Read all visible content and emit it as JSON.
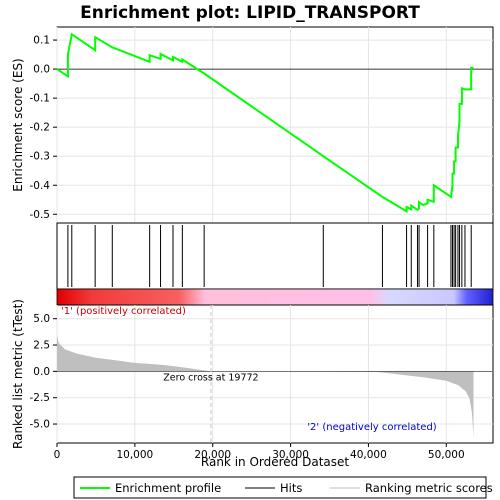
{
  "chart_data": {
    "type": "line",
    "title": "Enrichment plot: LIPID_TRANSPORT",
    "xlabel": "Rank in Ordered Dataset",
    "ylabel_top": "Enrichment score (ES)",
    "ylabel_bottom": "Ranked list metric (tTest)",
    "x_ticks": [
      0,
      10000,
      20000,
      30000,
      40000,
      50000
    ],
    "x_tick_labels": [
      "0",
      "10,000",
      "20,000",
      "30,000",
      "40,000",
      "50,000"
    ],
    "xlim": [
      0,
      56000
    ],
    "es_ylim": [
      -0.53,
      0.145
    ],
    "es_ticks": [
      0.1,
      0.0,
      -0.1,
      -0.2,
      -0.3,
      -0.4,
      -0.5
    ],
    "es_tick_labels": [
      "0.1",
      "0.0",
      "-0.1",
      "-0.2",
      "-0.3",
      "-0.4",
      "-0.5"
    ],
    "metric_ylim": [
      -6.8,
      6.3
    ],
    "metric_ticks": [
      5.0,
      2.5,
      0.0,
      -2.5,
      -5.0
    ],
    "metric_tick_labels": [
      "5.0",
      "2.5",
      "0.0",
      "-2.5",
      "-5.0"
    ],
    "es_curve": {
      "x": [
        0,
        1400,
        1400,
        1900,
        4900,
        4900,
        7100,
        11900,
        11900,
        13300,
        13300,
        14900,
        14900,
        16100,
        16100,
        18900,
        34200,
        41800,
        44900,
        44900,
        45500,
        45500,
        46300,
        46500,
        46500,
        47000,
        47600,
        47600,
        48400,
        48400,
        50600,
        50800,
        50800,
        51000,
        51000,
        51200,
        51200,
        51500,
        51500,
        51700,
        51700,
        52000,
        52000,
        52400,
        52400,
        53200,
        53200,
        53500
      ],
      "y": [
        0.0,
        -0.025,
        0.05,
        0.12,
        0.065,
        0.11,
        0.075,
        0.025,
        0.048,
        0.035,
        0.052,
        0.03,
        0.042,
        0.025,
        0.033,
        -0.015,
        -0.3,
        -0.44,
        -0.49,
        -0.475,
        -0.483,
        -0.47,
        -0.485,
        -0.48,
        -0.458,
        -0.468,
        -0.462,
        -0.45,
        -0.457,
        -0.4,
        -0.44,
        -0.4,
        -0.36,
        -0.36,
        -0.318,
        -0.318,
        -0.27,
        -0.27,
        -0.23,
        -0.18,
        -0.12,
        -0.12,
        -0.066,
        -0.07,
        -0.07,
        -0.07,
        0.005,
        0.005
      ]
    },
    "hits": [
      1400,
      1900,
      4900,
      7100,
      11900,
      13300,
      14900,
      16100,
      18900,
      34200,
      41800,
      44900,
      45500,
      46300,
      46500,
      47600,
      48400,
      50600,
      50800,
      51000,
      51200,
      51500,
      51700,
      52000,
      52400,
      53200
    ],
    "zero_cross": 19772,
    "zero_cross_label": "Zero cross at 19772",
    "label_positive": "'1' (positively correlated)",
    "label_negative": "'2' (negatively correlated)",
    "metric_profile": {
      "x": [
        0,
        200,
        1000,
        2500,
        5000,
        8000,
        10000,
        13000,
        15000,
        17000,
        19772,
        30000,
        41000,
        44000,
        47000,
        50000,
        51500,
        52500,
        53000,
        53300,
        53500
      ],
      "y": [
        3.5,
        2.7,
        2.1,
        1.7,
        1.3,
        1.0,
        0.8,
        0.65,
        0.5,
        0.3,
        0.0,
        0.0,
        -0.05,
        -0.3,
        -0.55,
        -0.9,
        -1.3,
        -1.9,
        -2.6,
        -4.0,
        -6.3
      ]
    },
    "legend": [
      "Enrichment profile",
      "Hits",
      "Ranking metric scores"
    ],
    "colors": {
      "es_line": "#00ff00",
      "hit": "#000000",
      "metric_fill": "#bfbfbf",
      "grid": "#e5e5e5",
      "zero_line": "#c8c8c8"
    }
  }
}
